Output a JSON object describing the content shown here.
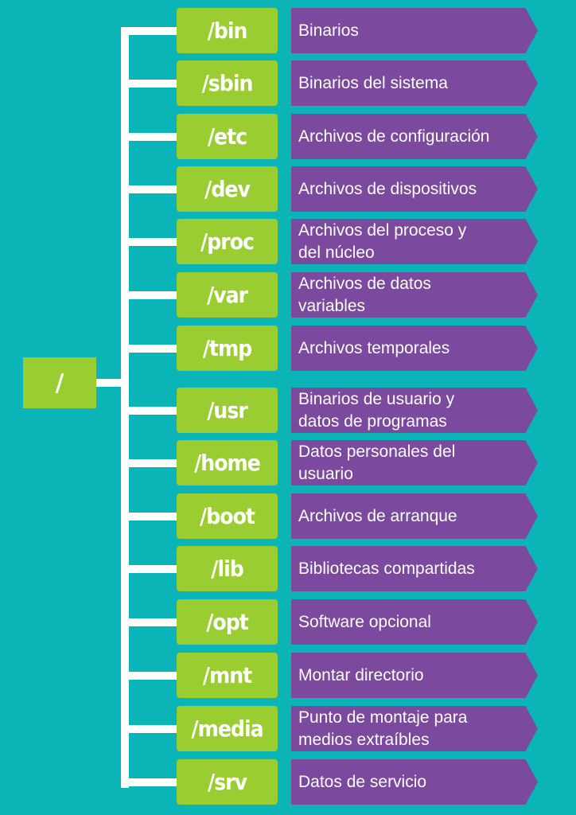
{
  "root": {
    "label": "/"
  },
  "directories": [
    {
      "path": "/bin",
      "description": "Binarios"
    },
    {
      "path": "/sbin",
      "description": "Binarios del sistema"
    },
    {
      "path": "/etc",
      "description": "Archivos de configuración"
    },
    {
      "path": "/dev",
      "description": "Archivos de dispositivos"
    },
    {
      "path": "/proc",
      "description": "Archivos del proceso y\ndel núcleo"
    },
    {
      "path": "/var",
      "description": "Archivos de datos\nvariables"
    },
    {
      "path": "/tmp",
      "description": "Archivos temporales"
    },
    {
      "path": "/usr",
      "description": "Binarios de usuario y\ndatos de programas"
    },
    {
      "path": "/home",
      "description": "Datos personales del\nusuario"
    },
    {
      "path": "/boot",
      "description": "Archivos de arranque"
    },
    {
      "path": "/lib",
      "description": "Bibliotecas compartidas"
    },
    {
      "path": "/opt",
      "description": "Software opcional"
    },
    {
      "path": "/mnt",
      "description": "Montar directorio"
    },
    {
      "path": "/media",
      "description": "Punto de montaje para\nmedios extraíbles"
    },
    {
      "path": "/srv",
      "description": "Datos de servicio"
    }
  ]
}
